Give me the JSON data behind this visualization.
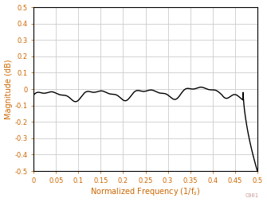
{
  "title": "",
  "xlabel": "Normalized Frequency (1/f$_s$)",
  "ylabel": "Magnitude (dB)",
  "xlim": [
    0,
    0.5
  ],
  "ylim": [
    -0.5,
    0.5
  ],
  "xticks": [
    0,
    0.05,
    0.1,
    0.15,
    0.2,
    0.25,
    0.3,
    0.35,
    0.4,
    0.45,
    0.5
  ],
  "yticks": [
    -0.5,
    -0.4,
    -0.3,
    -0.2,
    -0.1,
    0.0,
    0.1,
    0.2,
    0.3,
    0.4,
    0.5
  ],
  "line_color": "#000000",
  "line_width": 1.0,
  "grid_color": "#cccccc",
  "background_color": "#ffffff",
  "watermark": "C001",
  "label_color": "#cc6600",
  "tick_color": "#cc6600",
  "watermark_color": "#cc9999",
  "spine_color": "#000000"
}
